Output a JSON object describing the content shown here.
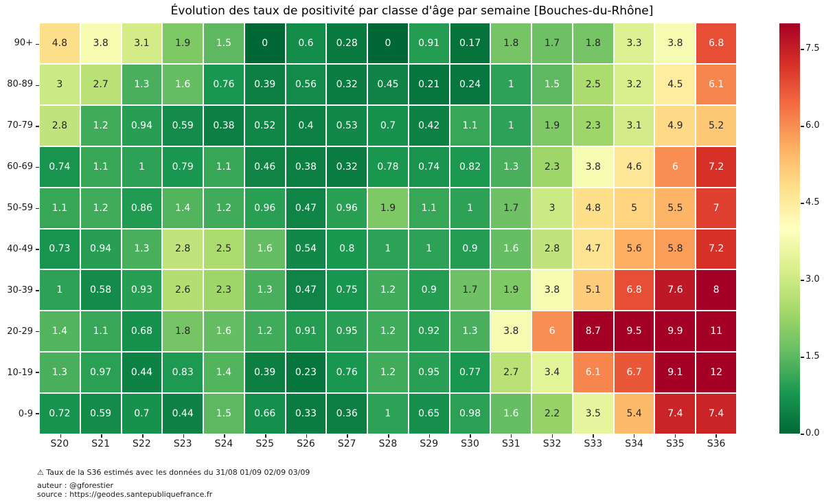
{
  "title": "Évolution des taux de positivité par classe d'âge par semaine [Bouches-du-Rhône]",
  "footer": {
    "note": "⚠ Taux de la S36 estimés avec les données du 31/08 01/09 02/09 03/09",
    "author": "auteur : @gforestier",
    "source": "source : https://geodes.santepubliquefrance.fr"
  },
  "chart_data": {
    "type": "heatmap",
    "title": "Évolution des taux de positivité par classe d'âge par semaine [Bouches-du-Rhône]",
    "x_categories": [
      "S20",
      "S21",
      "S22",
      "S23",
      "S24",
      "S25",
      "S26",
      "S27",
      "S28",
      "S29",
      "S30",
      "S31",
      "S32",
      "S33",
      "S34",
      "S35",
      "S36"
    ],
    "y_categories": [
      "90+",
      "80-89",
      "70-79",
      "60-69",
      "50-59",
      "40-49",
      "30-39",
      "20-29",
      "10-19",
      "0-9"
    ],
    "values": [
      [
        4.8,
        3.8,
        3.1,
        1.9,
        1.5,
        0,
        0.6,
        0.28,
        0,
        0.91,
        0.17,
        1.8,
        1.7,
        1.8,
        3.3,
        3.8,
        6.8
      ],
      [
        3,
        2.7,
        1.3,
        1.6,
        0.76,
        0.39,
        0.56,
        0.32,
        0.45,
        0.21,
        0.24,
        1,
        1.5,
        2.5,
        3.2,
        4.5,
        6.1
      ],
      [
        2.8,
        1.2,
        0.94,
        0.59,
        0.38,
        0.52,
        0.4,
        0.53,
        0.7,
        0.42,
        1.1,
        1,
        1.9,
        2.3,
        3.1,
        4.9,
        5.2
      ],
      [
        0.74,
        1.1,
        1,
        0.79,
        1.1,
        0.46,
        0.38,
        0.32,
        0.78,
        0.74,
        0.82,
        1.3,
        2.3,
        3.8,
        4.6,
        6,
        7.2
      ],
      [
        1.1,
        1.2,
        0.86,
        1.4,
        1.2,
        0.96,
        0.47,
        0.96,
        1.9,
        1.1,
        1,
        1.7,
        3,
        4.8,
        5,
        5.5,
        7
      ],
      [
        0.73,
        0.94,
        1.3,
        2.8,
        2.5,
        1.6,
        0.54,
        0.8,
        1,
        1,
        0.9,
        1.6,
        2.8,
        4.7,
        5.6,
        5.8,
        7.2
      ],
      [
        1,
        0.58,
        0.93,
        2.6,
        2.3,
        1.3,
        0.47,
        0.75,
        1.2,
        0.9,
        1.7,
        1.9,
        3.8,
        5.1,
        6.8,
        7.6,
        8
      ],
      [
        1.4,
        1.1,
        0.68,
        1.8,
        1.6,
        1.2,
        0.91,
        0.95,
        1.2,
        0.92,
        1.3,
        3.8,
        6,
        8.7,
        9.5,
        9.9,
        11
      ],
      [
        1.3,
        0.97,
        0.44,
        0.83,
        1.4,
        0.39,
        0.23,
        0.76,
        1.2,
        0.95,
        0.77,
        2.7,
        3.4,
        6.1,
        6.7,
        9.1,
        12
      ],
      [
        0.72,
        0.59,
        0.7,
        0.44,
        1.5,
        0.66,
        0.33,
        0.36,
        1,
        0.65,
        0.98,
        1.6,
        2.2,
        3.5,
        5.4,
        7.4,
        7.4
      ]
    ],
    "vmin": 0,
    "vmax": 8,
    "colormap": "RdYlGn_r",
    "colormap_stops": [
      "#a50026",
      "#d73027",
      "#f46d43",
      "#fdae61",
      "#fee08b",
      "#ffffbf",
      "#d9ef8b",
      "#a6d96a",
      "#66bd63",
      "#1a9850",
      "#006837"
    ],
    "cell_border_color": "#ffffff",
    "annot_dark_color": "#262626",
    "annot_light_color": "#ffffff",
    "colorbar_ticklabels": [
      "0.0",
      "1.5",
      "3.0",
      "4.5",
      "6.0",
      "7.5"
    ],
    "colorbar_tick_values": [
      0,
      1.5,
      3,
      4.5,
      6,
      7.5
    ],
    "legend_position": "right",
    "grid": false
  }
}
